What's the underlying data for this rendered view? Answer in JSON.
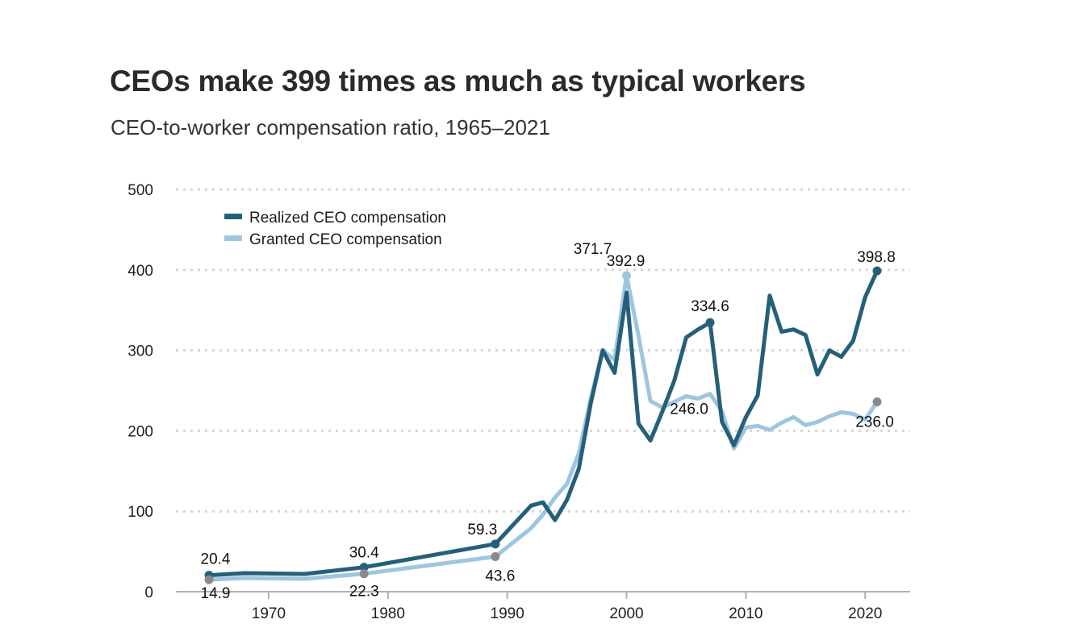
{
  "header": {
    "title": "CEOs make 399 times as much as typical workers",
    "subtitle": "CEO-to-worker compensation ratio, 1965–2021"
  },
  "colors": {
    "realized": "#25607a",
    "granted": "#9fc6e0",
    "endpoint_gray": "#8a8a8a",
    "grid": "#d6d6d6",
    "axis": "#b0b0b0"
  },
  "chart_data": {
    "type": "line",
    "title": "CEOs make 399 times as much as typical workers",
    "subtitle": "CEO-to-worker compensation ratio, 1965–2021",
    "xlabel": "",
    "ylabel": "",
    "xlim": [
      1963.5,
      2022.5
    ],
    "ylim": [
      0,
      500
    ],
    "x_ticks": [
      1970,
      1980,
      1990,
      2000,
      2010,
      2020
    ],
    "x_tick_labels": [
      "1970",
      "1980",
      "1990",
      "2000",
      "2010",
      "2020"
    ],
    "y_ticks": [
      0,
      100,
      200,
      300,
      400,
      500
    ],
    "y_tick_labels": [
      "0",
      "100",
      "200",
      "300",
      "400",
      "500"
    ],
    "grid": "horizontal dotted",
    "legend_position": "top-left",
    "series": [
      {
        "name": "Realized CEO compensation",
        "color": "#25607a",
        "x": [
          1965,
          1968,
          1973,
          1978,
          1989,
          1992,
          1993,
          1994,
          1995,
          1996,
          1997,
          1998,
          1999,
          2000,
          2001,
          2002,
          2003,
          2004,
          2005,
          2006,
          2007,
          2008,
          2009,
          2010,
          2011,
          2012,
          2013,
          2014,
          2015,
          2016,
          2017,
          2018,
          2019,
          2020,
          2021
        ],
        "values": [
          20.4,
          23.0,
          22.0,
          30.4,
          59.3,
          107,
          111,
          89,
          114,
          153,
          234,
          300,
          272,
          371.7,
          209,
          188,
          224,
          262,
          316,
          326,
          334.6,
          211,
          182,
          217,
          244,
          368,
          323,
          326,
          319,
          270,
          300,
          292,
          312,
          366,
          398.8
        ]
      },
      {
        "name": "Granted CEO compensation",
        "color": "#9fc6e0",
        "x": [
          1965,
          1968,
          1973,
          1978,
          1989,
          1992,
          1993,
          1994,
          1995,
          1996,
          1997,
          1998,
          1999,
          2000,
          2001,
          2002,
          2003,
          2004,
          2005,
          2006,
          2007,
          2008,
          2009,
          2010,
          2011,
          2012,
          2013,
          2014,
          2015,
          2016,
          2017,
          2018,
          2019,
          2020,
          2021
        ],
        "values": [
          14.9,
          17.0,
          16.0,
          22.3,
          43.6,
          79,
          96,
          117,
          134,
          172,
          240,
          300,
          288,
          392.9,
          318,
          237,
          229,
          236,
          243,
          240,
          246.0,
          224,
          178,
          204,
          206,
          201,
          210,
          217,
          207,
          211,
          218,
          223,
          221,
          214,
          236.0
        ]
      }
    ],
    "annotations": [
      {
        "text": "20.4",
        "series": "Realized CEO compensation",
        "x": 1965,
        "y": 20.4
      },
      {
        "text": "14.9",
        "series": "Granted CEO compensation",
        "x": 1965,
        "y": 14.9
      },
      {
        "text": "30.4",
        "series": "Realized CEO compensation",
        "x": 1978,
        "y": 30.4
      },
      {
        "text": "22.3",
        "series": "Granted CEO compensation",
        "x": 1978,
        "y": 22.3
      },
      {
        "text": "59.3",
        "series": "Realized CEO compensation",
        "x": 1989,
        "y": 59.3
      },
      {
        "text": "43.6",
        "series": "Granted CEO compensation",
        "x": 1989,
        "y": 43.6
      },
      {
        "text": "371.7",
        "series": "Realized CEO compensation",
        "x": 2000,
        "y": 371.7
      },
      {
        "text": "392.9",
        "series": "Granted CEO compensation",
        "x": 2000,
        "y": 392.9
      },
      {
        "text": "334.6",
        "series": "Realized CEO compensation",
        "x": 2007,
        "y": 334.6
      },
      {
        "text": "246.0",
        "series": "Granted CEO compensation",
        "x": 2007,
        "y": 246.0
      },
      {
        "text": "398.8",
        "series": "Realized CEO compensation",
        "x": 2021,
        "y": 398.8
      },
      {
        "text": "236.0",
        "series": "Granted CEO compensation",
        "x": 2021,
        "y": 236.0
      }
    ]
  }
}
